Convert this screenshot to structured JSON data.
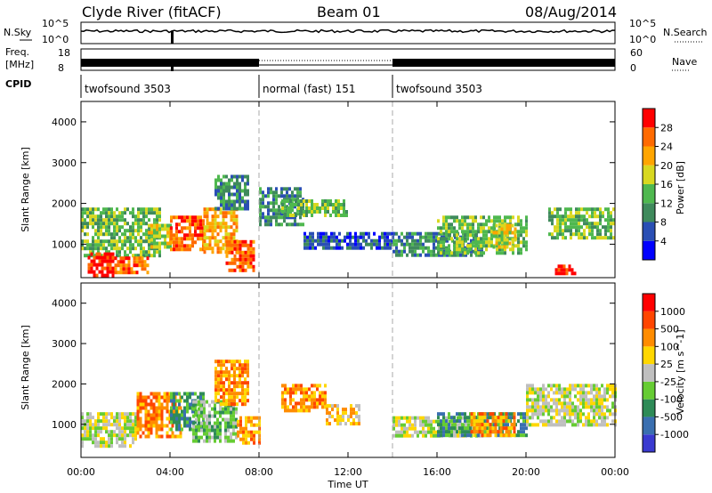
{
  "header": {
    "station": "Clyde River (fitACF)",
    "beam": "Beam 01",
    "date": "08/Aug/2014"
  },
  "strip_labels": {
    "nsky": "N.Sky",
    "nsky_ticks": [
      "10^5",
      "10^0"
    ],
    "nsearch": "N.Search",
    "nsearch_ticks": [
      "10^5",
      "10^0"
    ],
    "freq_line1": "Freq.",
    "freq_line2": "[MHz]",
    "freq_ticks": [
      "18",
      "8"
    ],
    "nave": "Nave",
    "nave_ticks": [
      "60",
      "0"
    ],
    "cpid": "CPID"
  },
  "cpid_segments": [
    {
      "label": "twofsound 3503",
      "start_hour": 0,
      "end_hour": 8
    },
    {
      "label": "normal (fast) 151",
      "start_hour": 8,
      "end_hour": 14
    },
    {
      "label": "twofsound 3503",
      "start_hour": 14,
      "end_hour": 24
    }
  ],
  "axes": {
    "ylabel": "Slant Range [km]",
    "xlabel": "Time UT",
    "yticks": [
      "1000",
      "2000",
      "3000",
      "4000"
    ],
    "xticks": [
      "00:00",
      "04:00",
      "08:00",
      "12:00",
      "16:00",
      "20:00",
      "00:00"
    ]
  },
  "chart_data": [
    {
      "type": "heatmap",
      "panel": "power",
      "ylabel": "Slant Range [km]",
      "xlabel": "Time UT",
      "xlim_hours": [
        0,
        24
      ],
      "ylim_km": [
        180,
        4500
      ],
      "colorbar_label": "Power [dB]",
      "colorbar_ticks": [
        "28",
        "24",
        "20",
        "16",
        "12",
        "8",
        "4"
      ],
      "colors": [
        "#0000ff",
        "#2a4fb4",
        "#3f8a5c",
        "#4fb84f",
        "#d8d820",
        "#ffa500",
        "#ff6a00",
        "#ff0000"
      ],
      "regions": [
        {
          "t": [
            0.0,
            3.5
          ],
          "r": [
            700,
            1900
          ],
          "level": 3
        },
        {
          "t": [
            0.3,
            1.5
          ],
          "r": [
            250,
            800
          ],
          "level": 7
        },
        {
          "t": [
            1.5,
            3.0
          ],
          "r": [
            300,
            700
          ],
          "level": 6
        },
        {
          "t": [
            3.0,
            4.0
          ],
          "r": [
            900,
            1500
          ],
          "level": 4
        },
        {
          "t": [
            4.0,
            5.5
          ],
          "r": [
            900,
            1700
          ],
          "level": 6
        },
        {
          "t": [
            5.5,
            7.0
          ],
          "r": [
            800,
            1900
          ],
          "level": 5
        },
        {
          "t": [
            6.5,
            7.8
          ],
          "r": [
            400,
            1100
          ],
          "level": 6
        },
        {
          "t": [
            6.0,
            7.5
          ],
          "r": [
            1900,
            2700
          ],
          "level": 2
        },
        {
          "t": [
            8.0,
            10.0
          ],
          "r": [
            1500,
            2400
          ],
          "level": 2
        },
        {
          "t": [
            9.0,
            12.0
          ],
          "r": [
            1700,
            2100
          ],
          "level": 3
        },
        {
          "t": [
            10.0,
            14.0
          ],
          "r": [
            900,
            1300
          ],
          "level": 1
        },
        {
          "t": [
            14.0,
            18.0
          ],
          "r": [
            700,
            1300
          ],
          "level": 2
        },
        {
          "t": [
            16.0,
            20.0
          ],
          "r": [
            800,
            1700
          ],
          "level": 3
        },
        {
          "t": [
            18.5,
            19.5
          ],
          "r": [
            900,
            1500
          ],
          "level": 4
        },
        {
          "t": [
            21.0,
            24.0
          ],
          "r": [
            1200,
            1900
          ],
          "level": 3
        },
        {
          "t": [
            21.3,
            22.2
          ],
          "r": [
            300,
            500
          ],
          "level": 7
        }
      ]
    },
    {
      "type": "heatmap",
      "panel": "velocity",
      "ylabel": "Slant Range [km]",
      "xlabel": "Time UT",
      "xlim_hours": [
        0,
        24
      ],
      "ylim_km": [
        180,
        4500
      ],
      "colorbar_label": "Velocity [m s^-1]",
      "colorbar_ticks": [
        "1000",
        "500",
        "100",
        "25",
        "-25",
        "-100",
        "-500",
        "-1000"
      ],
      "colors": [
        "#3a3ad0",
        "#3a6fb0",
        "#2e8b57",
        "#66cc33",
        "#bfbfbf",
        "#ffd700",
        "#ff8c00",
        "#ff4500",
        "#ff0000"
      ],
      "regions": [
        {
          "t": [
            0.0,
            2.5
          ],
          "r": [
            500,
            1300
          ],
          "level": 4
        },
        {
          "t": [
            2.5,
            4.5
          ],
          "r": [
            700,
            1800
          ],
          "level": 6
        },
        {
          "t": [
            4.0,
            5.5
          ],
          "r": [
            900,
            1800
          ],
          "level": 2
        },
        {
          "t": [
            5.0,
            7.0
          ],
          "r": [
            600,
            1600
          ],
          "level": 3
        },
        {
          "t": [
            6.0,
            7.5
          ],
          "r": [
            1500,
            2600
          ],
          "level": 6
        },
        {
          "t": [
            7.0,
            8.0
          ],
          "r": [
            500,
            1200
          ],
          "level": 6
        },
        {
          "t": [
            9.0,
            11.0
          ],
          "r": [
            1300,
            2000
          ],
          "level": 6
        },
        {
          "t": [
            11.0,
            12.5
          ],
          "r": [
            1000,
            1500
          ],
          "level": 5
        },
        {
          "t": [
            14.0,
            18.0
          ],
          "r": [
            700,
            1200
          ],
          "level": 4
        },
        {
          "t": [
            16.0,
            20.0
          ],
          "r": [
            700,
            1300
          ],
          "level": 2
        },
        {
          "t": [
            17.5,
            19.5
          ],
          "r": [
            700,
            1300
          ],
          "level": 6
        },
        {
          "t": [
            20.0,
            24.0
          ],
          "r": [
            1000,
            2000
          ],
          "level": 4
        }
      ]
    }
  ]
}
